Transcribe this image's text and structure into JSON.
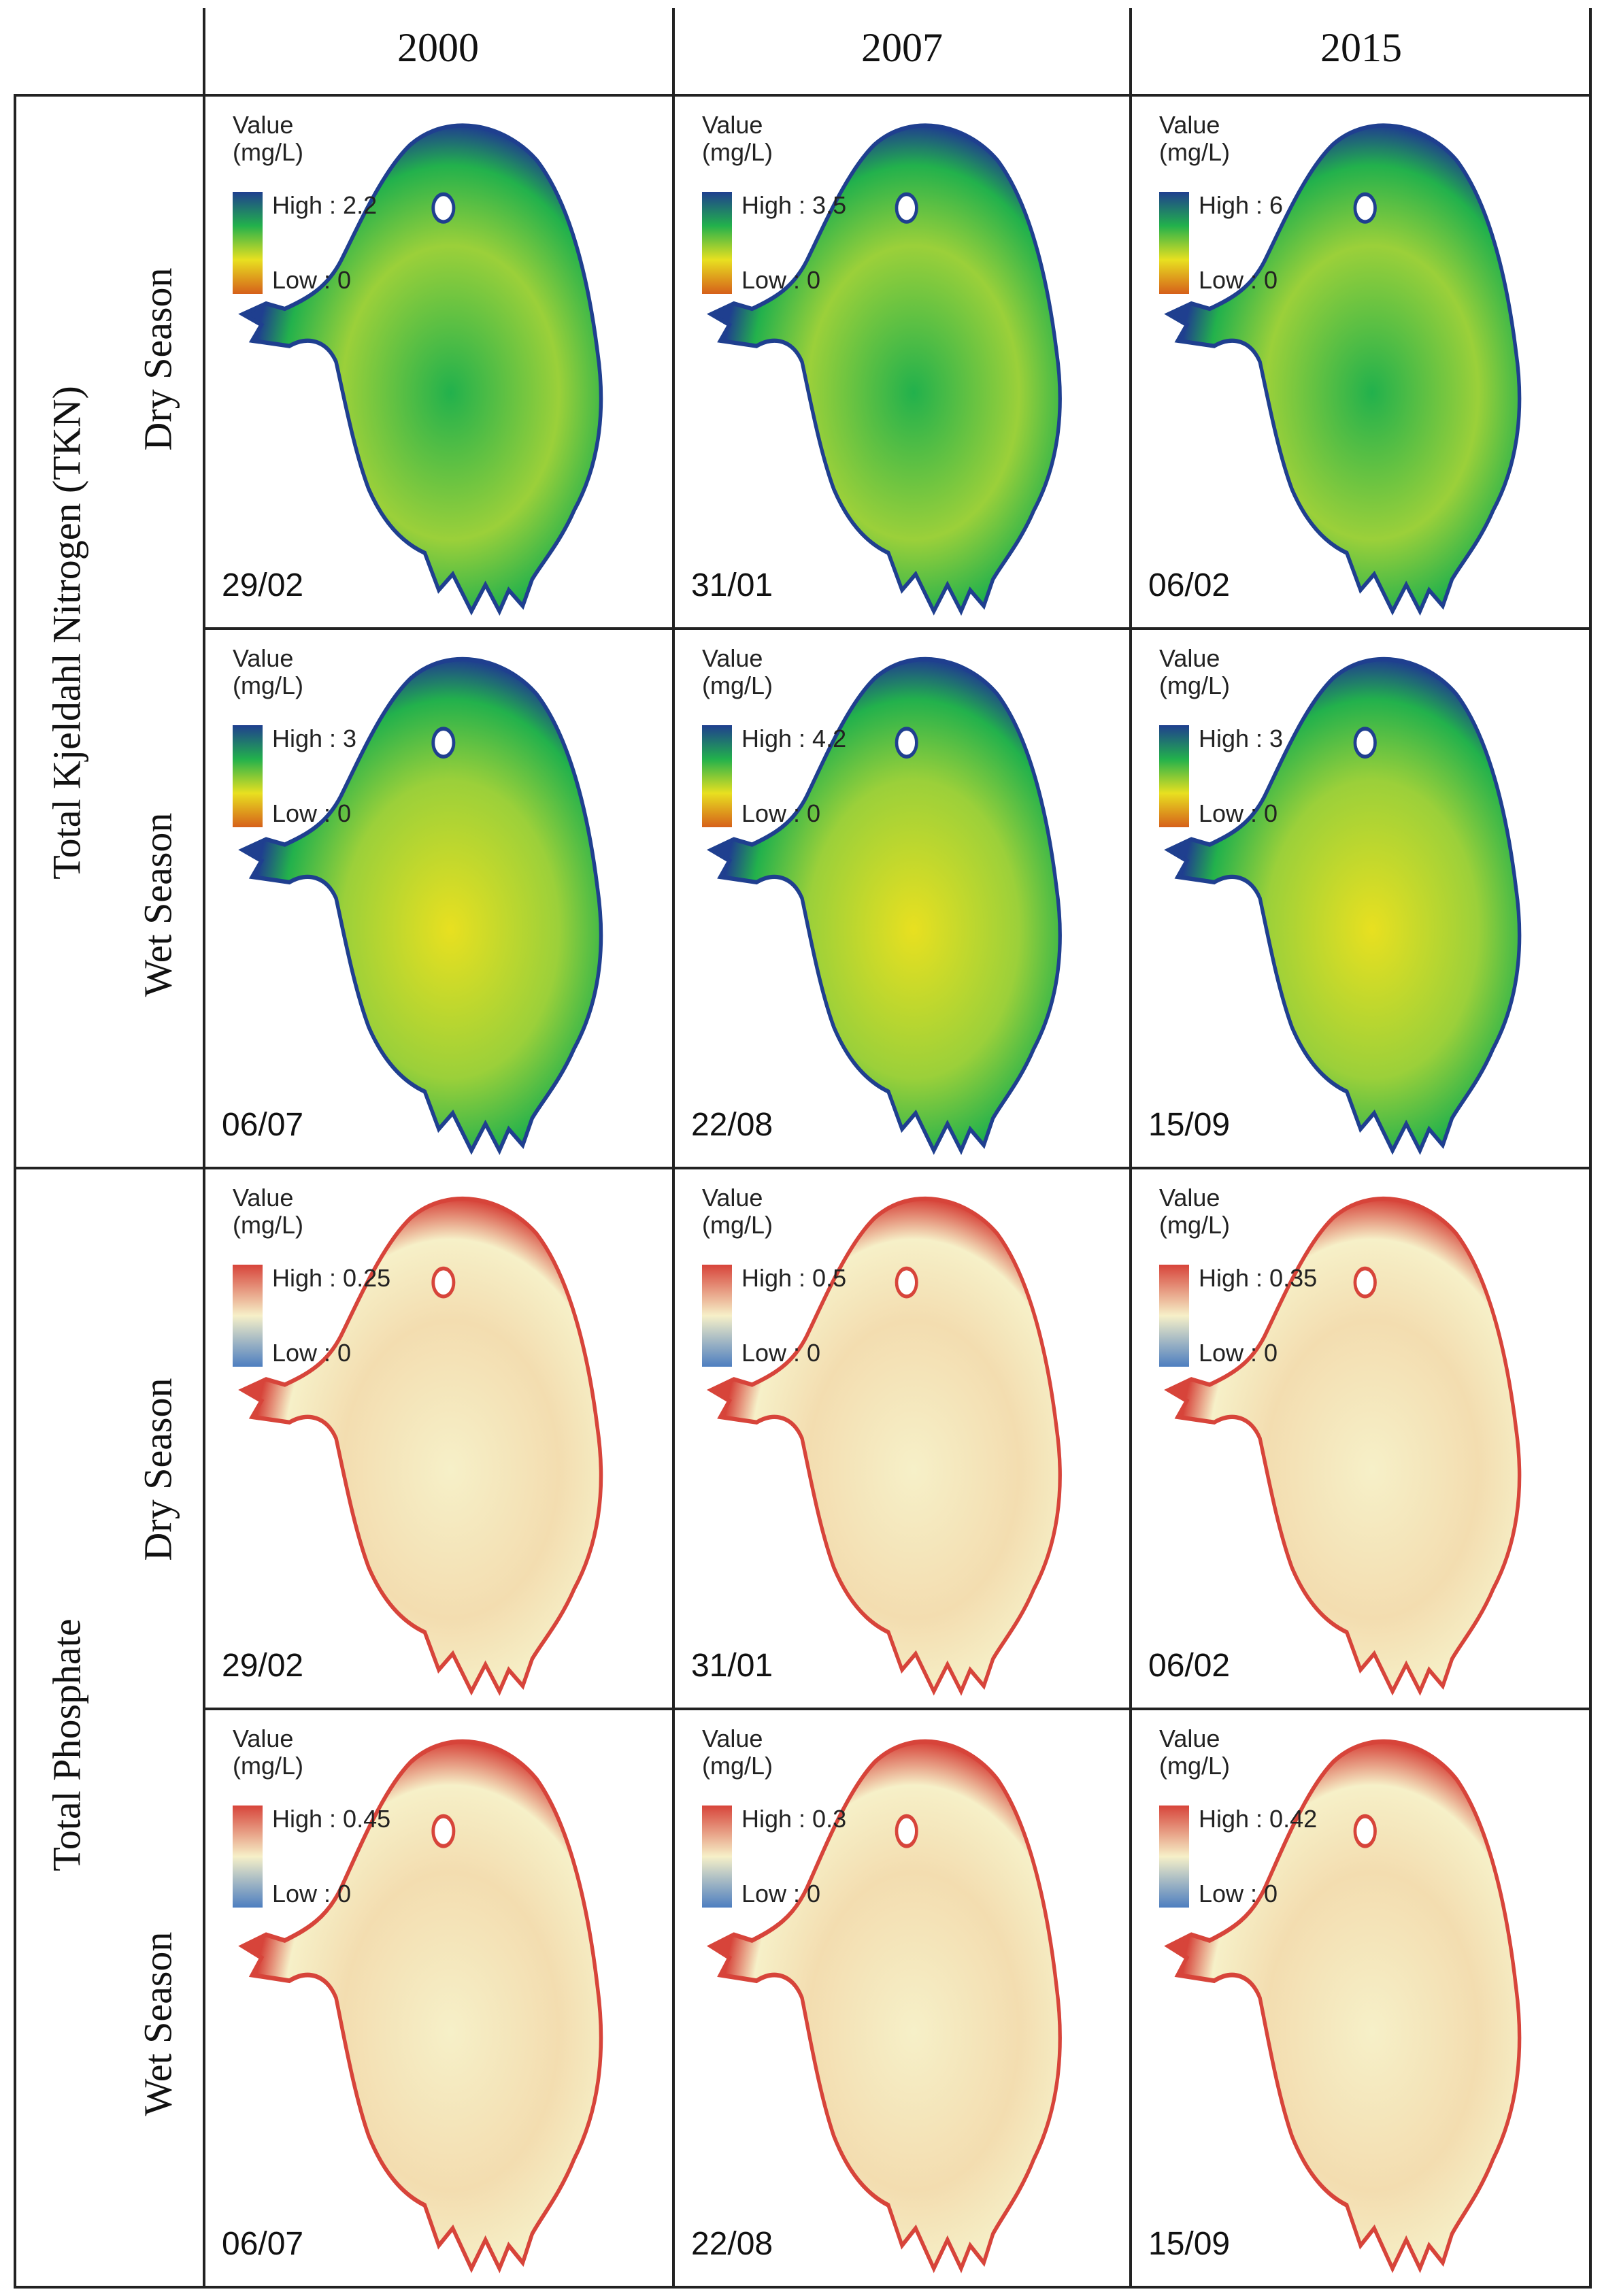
{
  "columns": [
    "2000",
    "2007",
    "2015"
  ],
  "groups": [
    "Total Kjeldahl Nitrogen (TKN)",
    "Total Phosphate"
  ],
  "seasons": {
    "dry": "Dry Season",
    "wet": "Wet Season"
  },
  "legend_title": [
    "Value",
    "(mg/L)"
  ],
  "palettes": {
    "tkn": {
      "high": "#1f3f8f",
      "mid": "#22b14c",
      "mid2": "#e8e020",
      "low": "#d6601a",
      "water": "#9bd03a"
    },
    "tp": {
      "high": "#d7443a",
      "mid": "#f6f0c8",
      "low": "#4d7ec0",
      "water": "#f3ddb0"
    }
  },
  "panels": [
    {
      "row": 0,
      "col": 0,
      "param": "tkn",
      "high": "High : 2.2",
      "low": "Low : 0",
      "date": "29/02"
    },
    {
      "row": 0,
      "col": 1,
      "param": "tkn",
      "high": "High : 3.5",
      "low": "Low : 0",
      "date": "31/01"
    },
    {
      "row": 0,
      "col": 2,
      "param": "tkn",
      "high": "High : 6",
      "low": "Low : 0",
      "date": "06/02"
    },
    {
      "row": 1,
      "col": 0,
      "param": "tkn",
      "high": "High : 3",
      "low": "Low : 0",
      "date": "06/07"
    },
    {
      "row": 1,
      "col": 1,
      "param": "tkn",
      "high": "High : 4.2",
      "low": "Low : 0",
      "date": "22/08"
    },
    {
      "row": 1,
      "col": 2,
      "param": "tkn",
      "high": "High : 3",
      "low": "Low : 0",
      "date": "15/09"
    },
    {
      "row": 2,
      "col": 0,
      "param": "tp",
      "high": "High : 0.25",
      "low": "Low : 0",
      "date": "29/02"
    },
    {
      "row": 2,
      "col": 1,
      "param": "tp",
      "high": "High : 0.5",
      "low": "Low : 0",
      "date": "31/01"
    },
    {
      "row": 2,
      "col": 2,
      "param": "tp",
      "high": "High : 0.35",
      "low": "Low : 0",
      "date": "06/02"
    },
    {
      "row": 3,
      "col": 0,
      "param": "tp",
      "high": "High : 0.45",
      "low": "Low : 0",
      "date": "06/07"
    },
    {
      "row": 3,
      "col": 1,
      "param": "tp",
      "high": "High : 0.3",
      "low": "Low : 0",
      "date": "22/08"
    },
    {
      "row": 3,
      "col": 2,
      "param": "tp",
      "high": "High : 0.42",
      "low": "Low : 0",
      "date": "15/09"
    }
  ]
}
